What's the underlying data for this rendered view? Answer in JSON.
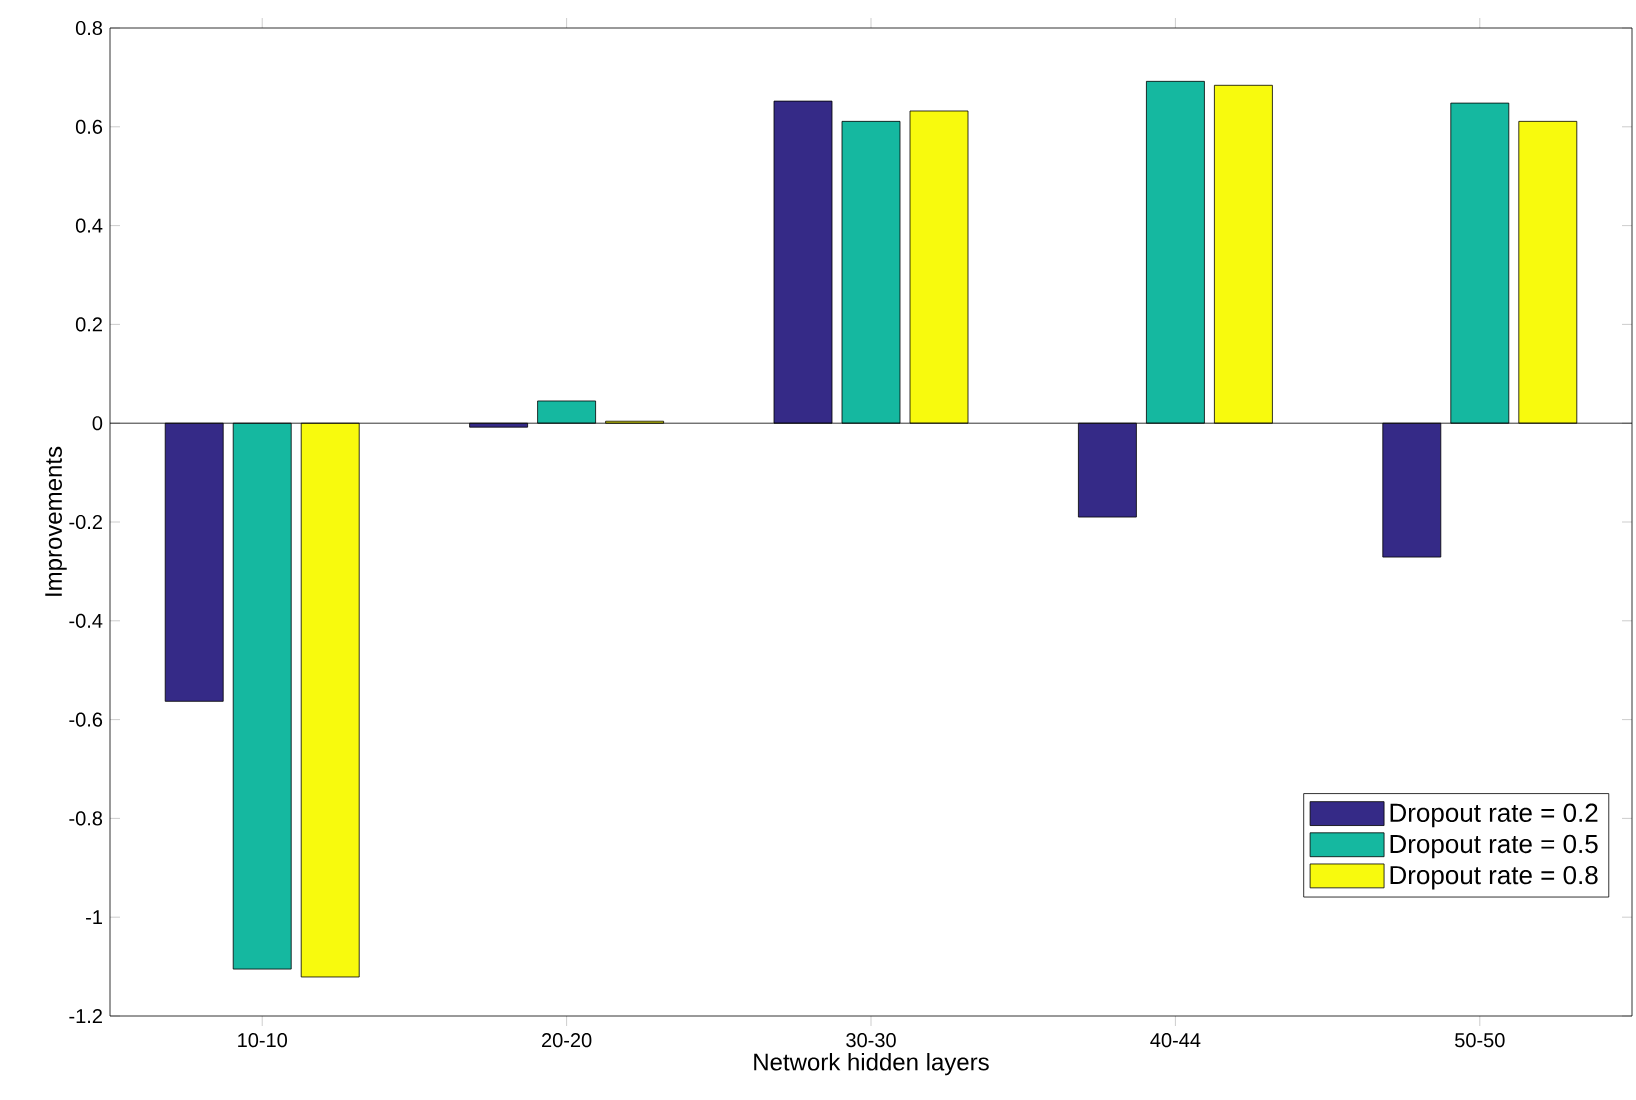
{
  "chart_data": {
    "type": "bar",
    "xlabel": "Network hidden layers",
    "ylabel": "Improvements",
    "categories": [
      "10-10",
      "20-20",
      "30-30",
      "40-44",
      "50-50"
    ],
    "series": [
      {
        "name": "Dropout rate = 0.2",
        "color": "#352a87",
        "values": [
          -0.563,
          -0.008,
          0.652,
          -0.19,
          -0.271
        ]
      },
      {
        "name": "Dropout rate = 0.5",
        "color": "#15b8a0",
        "values": [
          -1.105,
          0.045,
          0.611,
          0.692,
          0.648
        ]
      },
      {
        "name": "Dropout rate = 0.8",
        "color": "#f8fa0d",
        "values": [
          -1.121,
          0.004,
          0.632,
          0.684,
          0.611
        ]
      }
    ],
    "ylim": [
      -1.2,
      0.8
    ],
    "yticks": [
      -1.2,
      -1,
      -0.8,
      -0.6,
      -0.4,
      -0.2,
      0,
      0.2,
      0.4,
      0.6,
      0.8
    ],
    "legend": "bottom right"
  }
}
